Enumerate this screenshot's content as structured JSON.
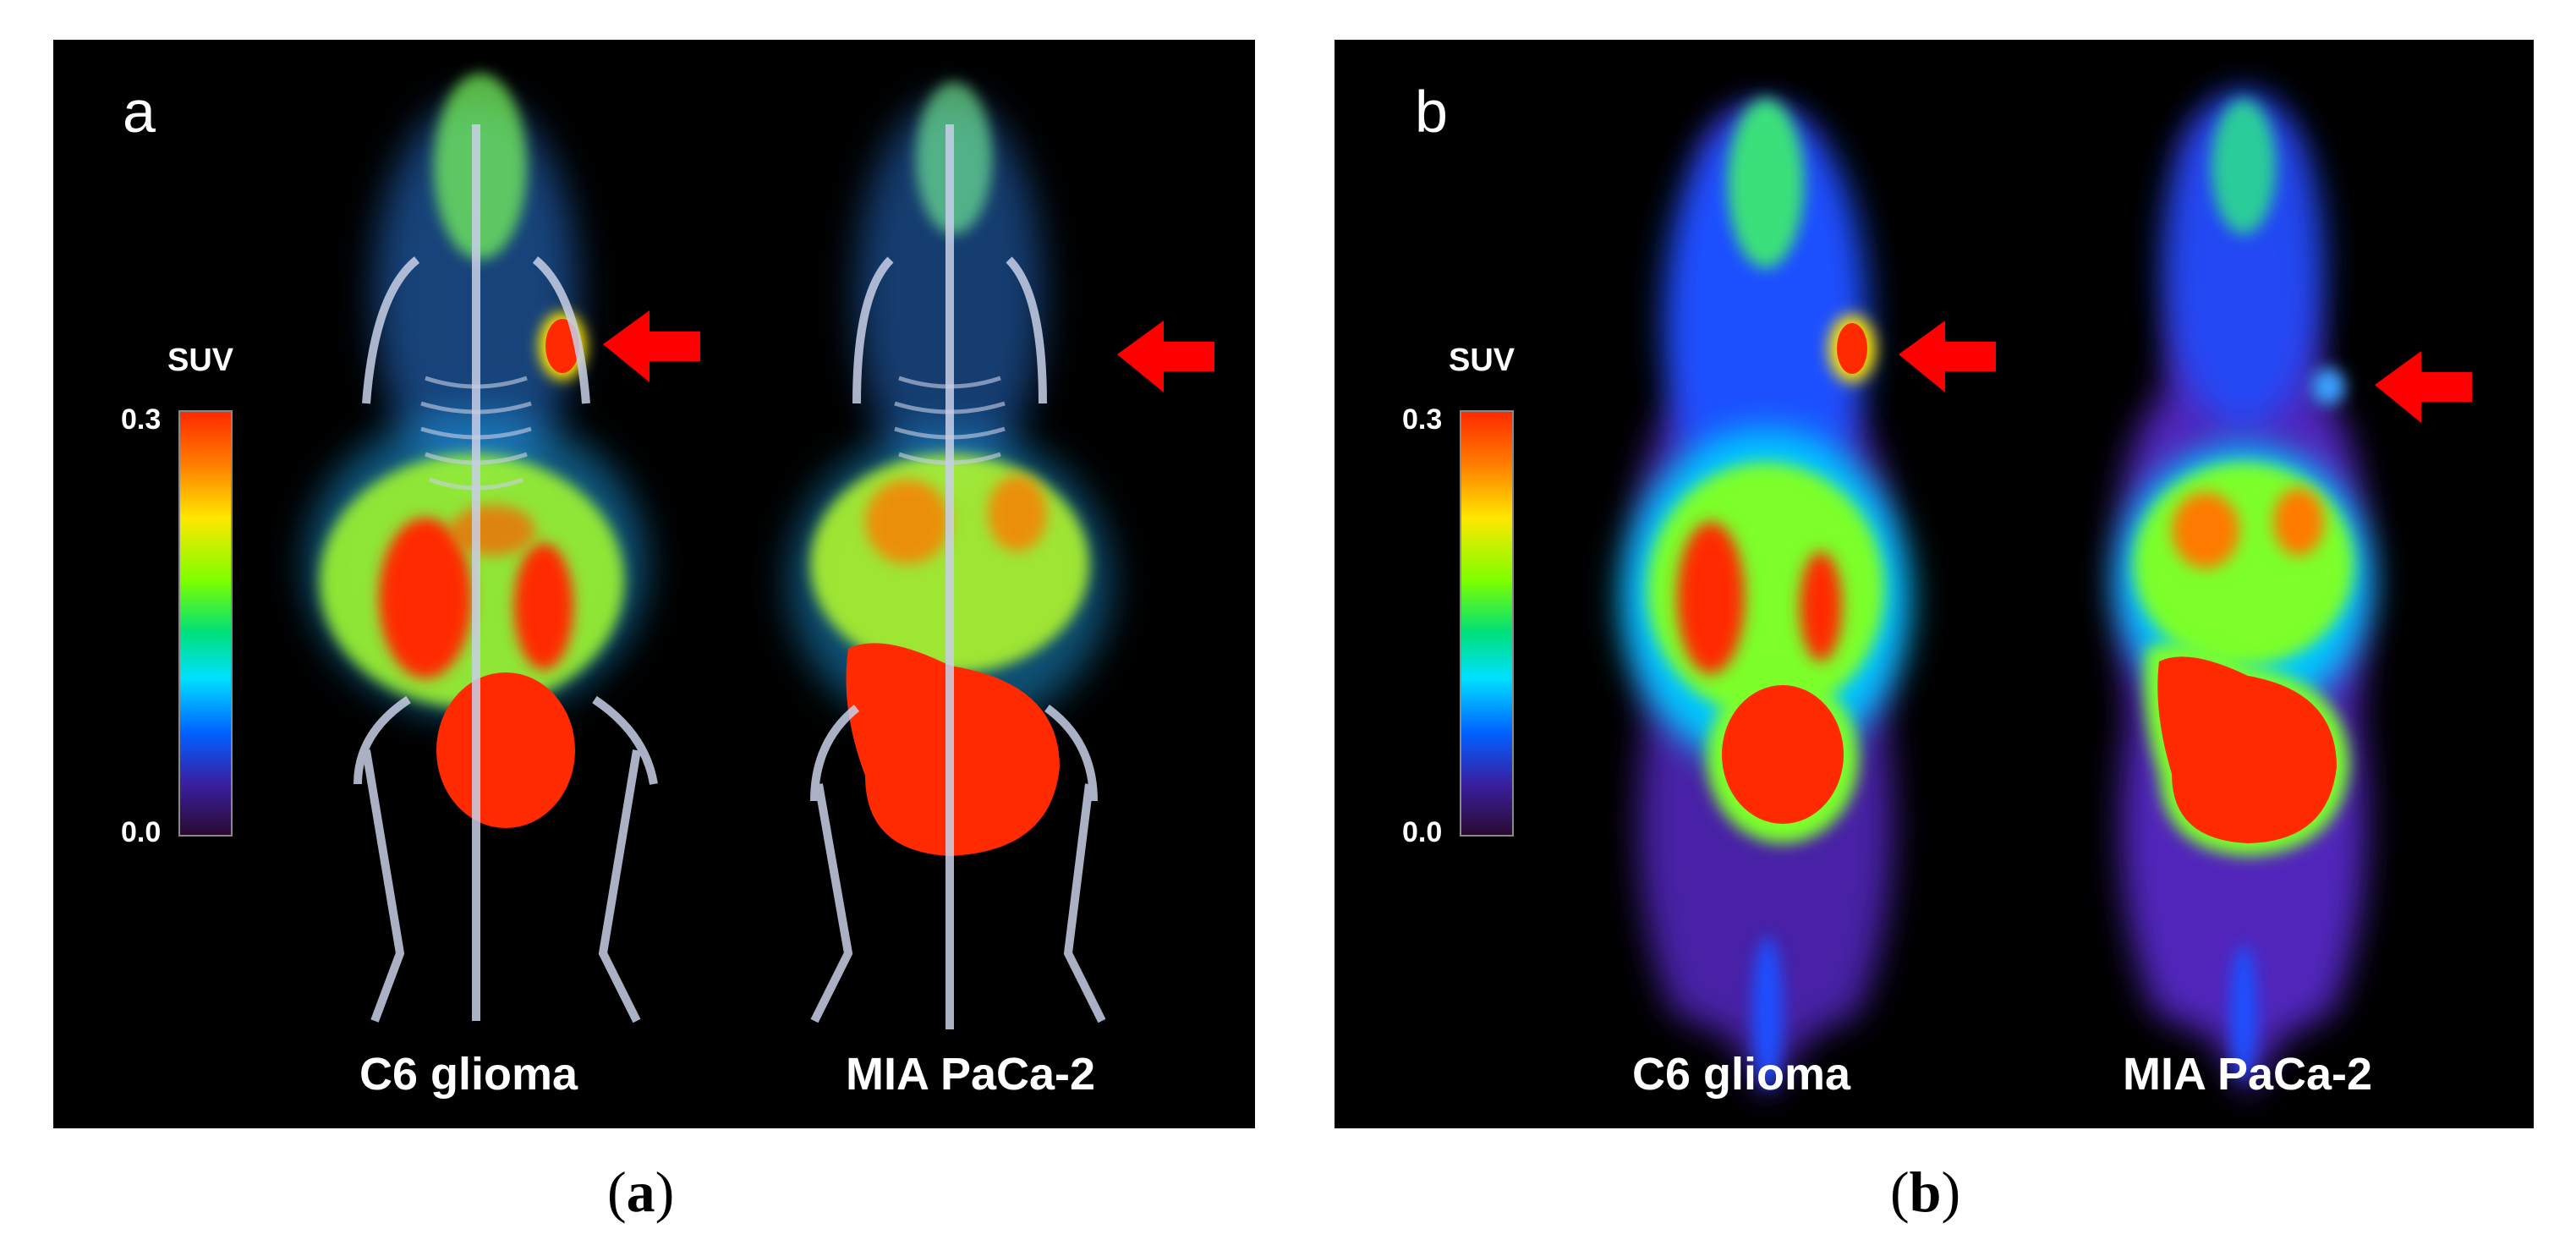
{
  "panels": [
    {
      "letter": "a",
      "colorbar": {
        "label": "SUV",
        "max": "0.3",
        "min": "0.0"
      },
      "labels": [
        "C6 glioma",
        "MIA PaCa-2"
      ]
    },
    {
      "letter": "b",
      "colorbar": {
        "label": "SUV",
        "max": "0.3",
        "min": "0.0"
      },
      "labels": [
        "C6 glioma",
        "MIA PaCa-2"
      ]
    }
  ],
  "captions": [
    {
      "open": "(",
      "letter": "a",
      "close": ")"
    },
    {
      "open": "(",
      "letter": "b",
      "close": ")"
    }
  ],
  "colors": {
    "background": "#000000",
    "arrow": "#ff0000",
    "hot": "#ff2a00",
    "skeleton": "#c8d0e8"
  }
}
